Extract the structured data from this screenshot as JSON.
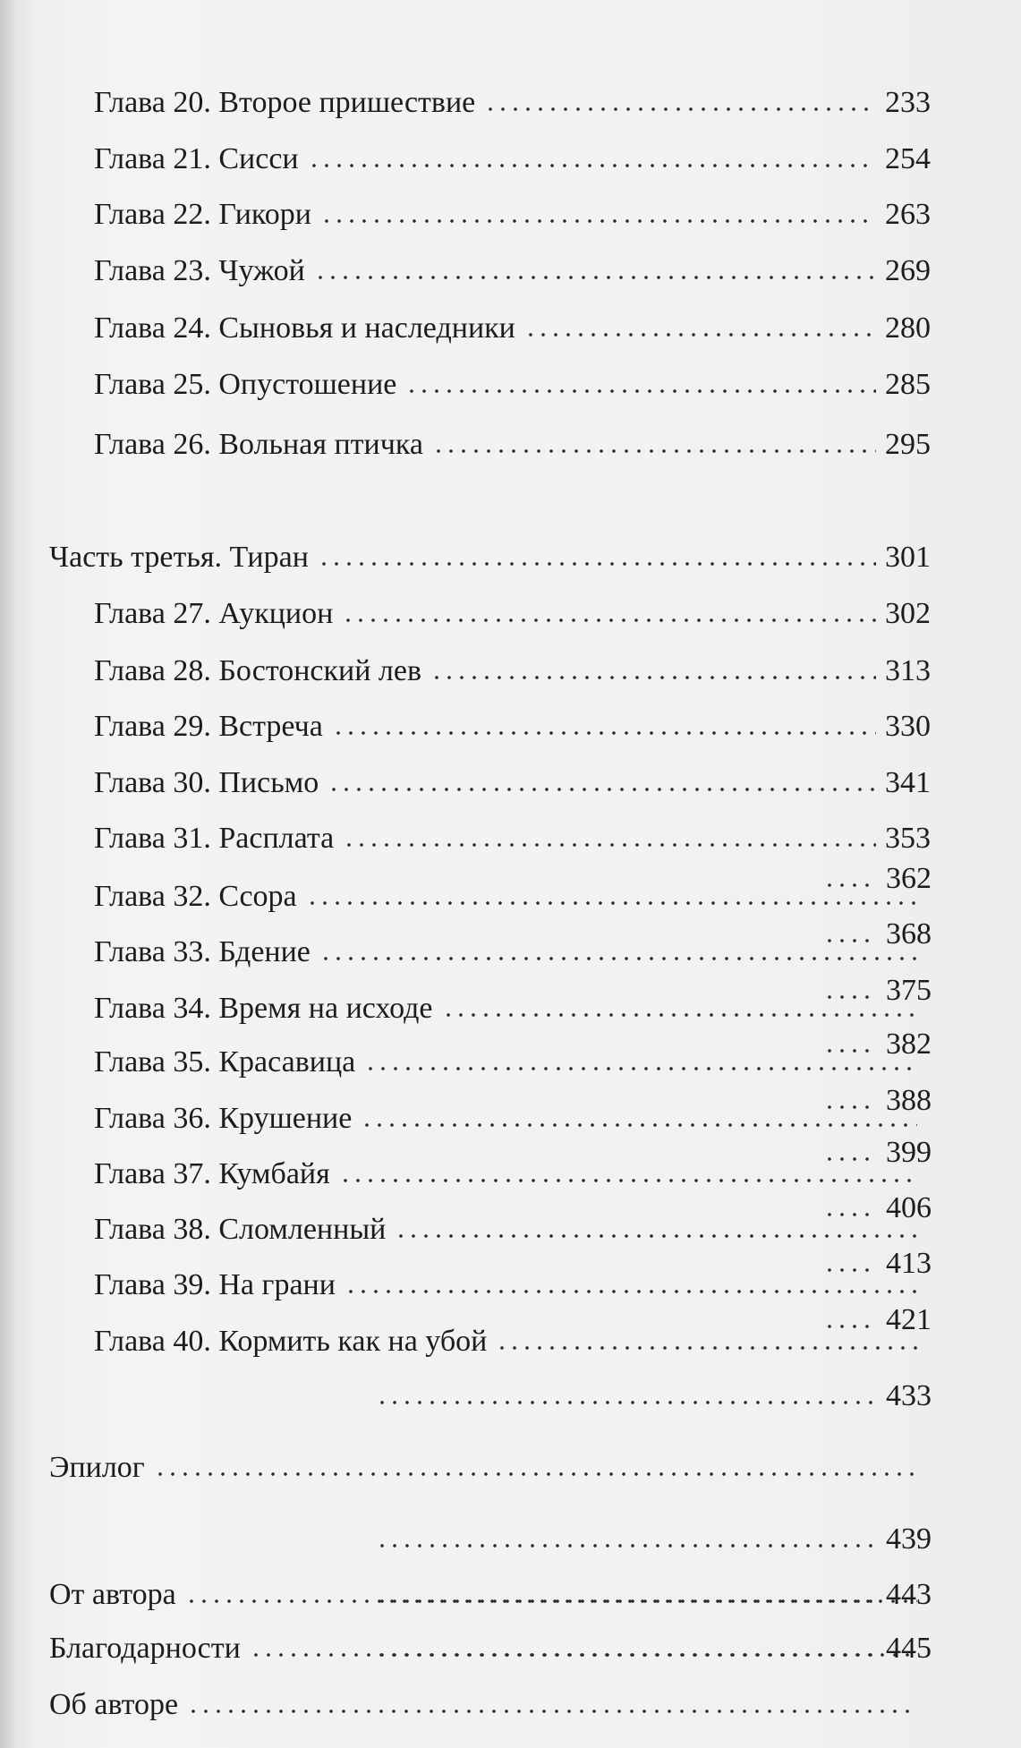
{
  "toc": {
    "rows": [
      {
        "label": "Глава 20. Второе пришествие",
        "page": "233"
      },
      {
        "label": "Глава 21. Сисси",
        "page": "254"
      },
      {
        "label": "Глава 22. Гикори",
        "page": "263"
      },
      {
        "label": "Глава 23. Чужой",
        "page": "269"
      },
      {
        "label": "Глава 24. Сыновья и наследники",
        "page": "280"
      },
      {
        "label": "Глава 25. Опустошение",
        "page": "285"
      },
      {
        "label": "Глава 26. Вольная птичка",
        "page": "295"
      },
      {
        "label": "Часть третья. Тиран",
        "page": "301"
      },
      {
        "label": "Глава 27. Аукцион",
        "page": "302"
      },
      {
        "label": "Глава 28. Бостонский лев",
        "page": "313"
      },
      {
        "label": "Глава 29. Встреча",
        "page": "330"
      },
      {
        "label": "Глава 30. Письмо",
        "page": "341"
      },
      {
        "label": "Глава 31. Расплата",
        "page": "353"
      },
      {
        "label": "Глава 32. Ссора",
        "page": "362"
      },
      {
        "label": "Глава 33. Бдение",
        "page": "368"
      },
      {
        "label": "Глава 34. Время на исходе",
        "page": "375"
      },
      {
        "label": "Глава 35. Красавица",
        "page": "382"
      },
      {
        "label": "Глава 36. Крушение",
        "page": "388"
      },
      {
        "label": "Глава 37. Кумбайя",
        "page": "399"
      },
      {
        "label": "Глава 38. Сломленный",
        "page": "406"
      },
      {
        "label": "Глава 39. На грани",
        "page": "413"
      },
      {
        "label": "Глава 40. Кормить как на убой",
        "page": "421"
      },
      {
        "label": "Эпилог",
        "page": "433"
      },
      {
        "label": "От автора",
        "page": "439"
      },
      {
        "label": "Благодарности",
        "page": "443"
      },
      {
        "label": "Об авторе",
        "page": "445"
      }
    ]
  }
}
